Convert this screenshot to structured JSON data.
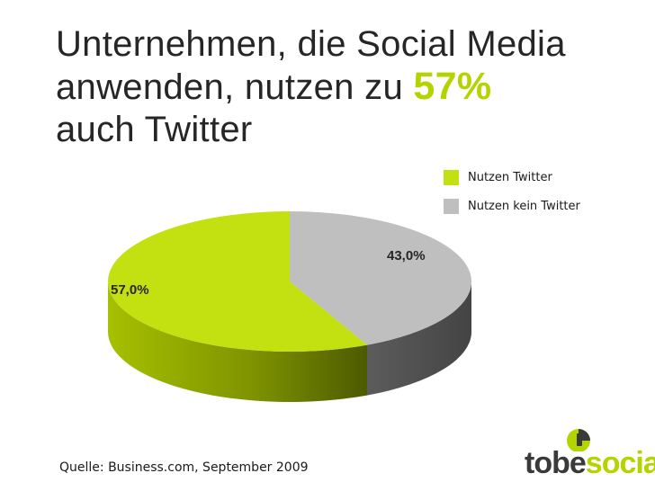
{
  "title": {
    "line1": "Unternehmen, die Social Media",
    "line2_pre": "anwenden, nutzen zu",
    "line2_highlight": "57%",
    "line3": "auch Twitter"
  },
  "legend": [
    {
      "label": "Nutzen Twitter",
      "color": "#c3e010"
    },
    {
      "label": "Nutzen kein Twitter",
      "color": "#bfbfbf"
    }
  ],
  "chart_data": {
    "type": "pie",
    "title": "Unternehmen, die Social Media anwenden, nutzen zu 57% auch Twitter",
    "categories": [
      "Nutzen Twitter",
      "Nutzen kein Twitter"
    ],
    "values": [
      57.0,
      43.0
    ],
    "data_labels": [
      "57,0%",
      "43,0%"
    ],
    "colors": [
      "#c3e010",
      "#bfbfbf"
    ],
    "style": "3d",
    "legend_position": "top-right"
  },
  "source": "Quelle: Business.com, September 2009",
  "logo": {
    "part1": "tobe",
    "part2": "social",
    "accent": "#b4d400"
  }
}
